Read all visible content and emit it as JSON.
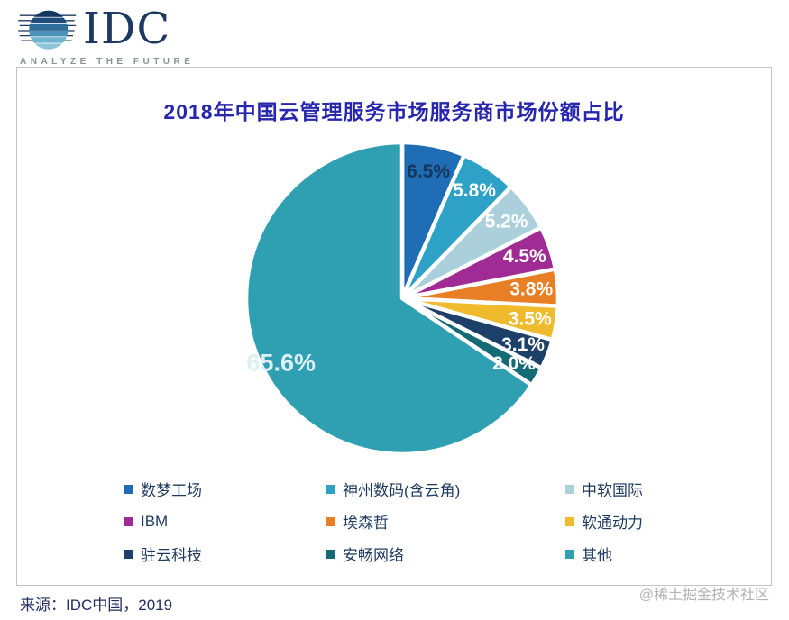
{
  "logo": {
    "text": "IDC",
    "tagline": "ANALYZE THE FUTURE"
  },
  "title": "2018年中国云管理服务市场服务商市场份额占比",
  "source": "来源：IDC中国，2019",
  "watermark": "@稀土掘金技术社区",
  "colors": {
    "title": "#2727ae",
    "legend_text": "#1e3a5f",
    "source_text": "#23305e",
    "watermark_text": "#b3b3b3",
    "slice_border": "#ffffff",
    "logo_navy": "#1c3863"
  },
  "chart_data": {
    "type": "pie",
    "title": "2018年中国云管理服务市场服务商市场份额占比",
    "unit": "%",
    "start_angle_deg_from_north": 0,
    "direction": "clockwise",
    "legend_position": "bottom",
    "slices": [
      {
        "label": "数梦工场",
        "value": 6.5,
        "color": "#1f6db4",
        "label_color": "#17375e"
      },
      {
        "label": "神州数码(含云角)",
        "value": 5.8,
        "color": "#2da2c6",
        "label_color": "#ffffff"
      },
      {
        "label": "中软国际",
        "value": 5.2,
        "color": "#abd0dc",
        "label_color": "#ffffff"
      },
      {
        "label": "IBM",
        "value": 4.5,
        "color": "#a02b94",
        "label_color": "#ffffff"
      },
      {
        "label": "埃森哲",
        "value": 3.8,
        "color": "#e87f25",
        "label_color": "#ffffff"
      },
      {
        "label": "软通动力",
        "value": 3.5,
        "color": "#f0ba2d",
        "label_color": "#ffffff"
      },
      {
        "label": "驻云科技",
        "value": 3.1,
        "color": "#1d4068",
        "label_color": "#ffffff"
      },
      {
        "label": "安畅网络",
        "value": 2.0,
        "color": "#156b74",
        "label_color": "#ffffff"
      },
      {
        "label": "其他",
        "value": 65.6,
        "color": "#2f9fb2",
        "label_color": "#ddf0f4",
        "label_size": 27,
        "label_r": 0.88
      }
    ]
  }
}
